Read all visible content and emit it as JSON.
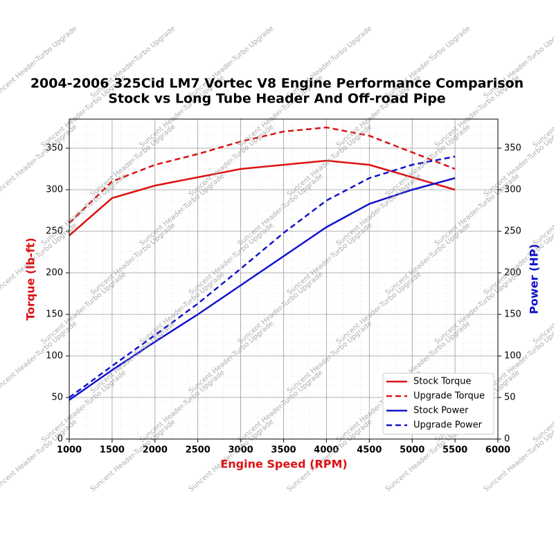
{
  "chart_data": {
    "type": "line",
    "title": "2004-2006 325Cid LM7 Vortec V8 Engine Performance Comparison",
    "subtitle": "Stock vs Long Tube Header And Off-road Pipe",
    "x_label": "Engine Speed (RPM)",
    "y_label": "Torque (lb-ft)",
    "y2_label": "Power (HP)",
    "watermark": "Suncent Header-Turbo Upgrade",
    "x": [
      1000,
      1500,
      2000,
      2500,
      3000,
      3500,
      4000,
      4500,
      5000,
      5500
    ],
    "xlim": [
      1000,
      6000
    ],
    "xticks": [
      1000,
      1500,
      2000,
      2500,
      3000,
      3500,
      4000,
      4500,
      5000,
      5500,
      6000
    ],
    "ylim": [
      0,
      385
    ],
    "yticks": [
      0,
      50,
      100,
      150,
      200,
      250,
      300,
      350
    ],
    "y2lim": [
      0,
      385
    ],
    "y2ticks": [
      0,
      50,
      100,
      150,
      200,
      250,
      300,
      350
    ],
    "grid": true,
    "legend": "lower right",
    "series": [
      {
        "name": "Stock Torque",
        "color": "#dd1111",
        "linestyle": "solid",
        "values": [
          245,
          290,
          305,
          315,
          325,
          330,
          335,
          330,
          315,
          300
        ]
      },
      {
        "name": "Upgrade Torque",
        "color": "#dd1111",
        "linestyle": "dashed",
        "values": [
          260,
          310,
          330,
          343,
          358,
          370,
          375,
          365,
          345,
          325
        ]
      },
      {
        "name": "Stock Power",
        "color": "#1111cc",
        "linestyle": "solid",
        "axis": "y2",
        "values": [
          47,
          83,
          117,
          150,
          185,
          220,
          255,
          283,
          300,
          314
        ]
      },
      {
        "name": "Upgrade Power",
        "color": "#1111cc",
        "linestyle": "dashed",
        "axis": "y2",
        "values": [
          50,
          88,
          125,
          163,
          205,
          248,
          287,
          314,
          330,
          340
        ]
      }
    ]
  }
}
